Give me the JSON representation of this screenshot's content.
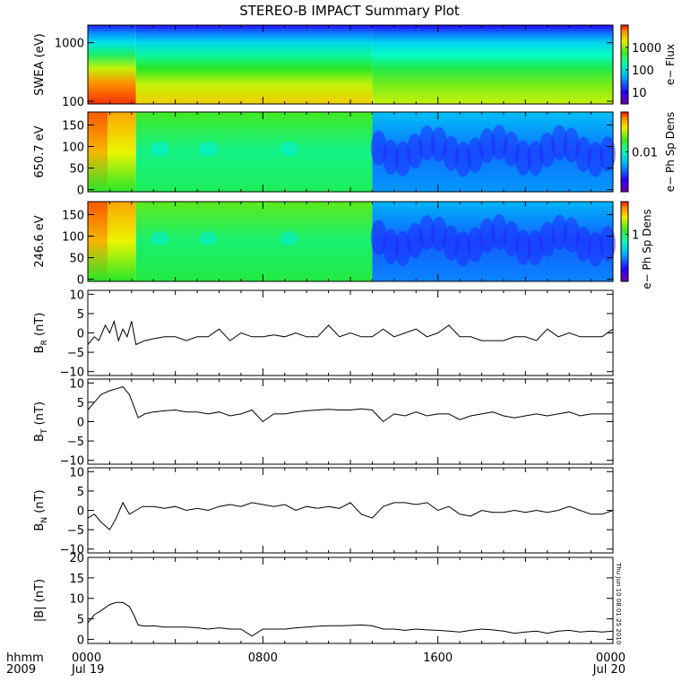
{
  "title": "STEREO-B IMPACT Summary Plot",
  "timestamp": "Thu Jun 10 08:01:25 2010",
  "time_axis": {
    "corner_line1": "hhmm",
    "corner_line2": "2009",
    "ticks": [
      {
        "hour": 0,
        "line1": "0000",
        "line2": "Jul 19"
      },
      {
        "hour": 8,
        "line1": "0800",
        "line2": ""
      },
      {
        "hour": 16,
        "line1": "1600",
        "line2": ""
      },
      {
        "hour": 24,
        "line1": "0000",
        "line2": "Jul 20"
      }
    ],
    "range_hours": [
      0,
      24
    ]
  },
  "chart_data": [
    {
      "type": "heatmap",
      "ylabel": "SWEA (eV)",
      "yscale": "log",
      "ylim": [
        90,
        2000
      ],
      "yticks": [
        {
          "v": 100,
          "label": "100"
        },
        {
          "v": 1000,
          "label": "1000"
        }
      ],
      "colorbar": {
        "label": "e− Flux",
        "scale": "log",
        "range": [
          3,
          10000
        ],
        "ticks": [
          {
            "v": 10,
            "label": "10"
          },
          {
            "v": 100,
            "label": "100"
          },
          {
            "v": 1000,
            "label": "1000"
          }
        ]
      },
      "regions": [
        {
          "x": [
            0,
            2.2
          ],
          "note": "high flux at low energy"
        },
        {
          "x": [
            2.2,
            13
          ],
          "note": "moderate"
        },
        {
          "x": [
            13,
            24
          ],
          "note": "lower flux"
        }
      ]
    },
    {
      "type": "heatmap",
      "ylabel": "650.7 eV",
      "yscale": "linear",
      "ylim": [
        -5,
        180
      ],
      "yticks": [
        {
          "v": 0,
          "label": "0"
        },
        {
          "v": 50,
          "label": "50"
        },
        {
          "v": 100,
          "label": "100"
        },
        {
          "v": 150,
          "label": "150"
        }
      ],
      "colorbar": {
        "label": "e− Ph Sp Dens",
        "scale": "log",
        "range": [
          0.001,
          0.1
        ],
        "ticks": [
          {
            "v": 0.01,
            "label": "0.01"
          }
        ]
      }
    },
    {
      "type": "heatmap",
      "ylabel": "246.6 eV",
      "yscale": "linear",
      "ylim": [
        -5,
        180
      ],
      "yticks": [
        {
          "v": 0,
          "label": "0"
        },
        {
          "v": 50,
          "label": "50"
        },
        {
          "v": 100,
          "label": "100"
        },
        {
          "v": 150,
          "label": "150"
        }
      ],
      "colorbar": {
        "label": "e− Ph Sp Dens",
        "scale": "log",
        "range": [
          0.1,
          5
        ],
        "ticks": [
          {
            "v": 1,
            "label": "1"
          }
        ]
      }
    },
    {
      "type": "line",
      "ylabel_main": "B",
      "ylabel_sub": "R",
      "ylabel_unit": " (nT)",
      "ylim": [
        -11,
        11
      ],
      "yticks": [
        {
          "v": -10,
          "label": "−10"
        },
        {
          "v": -5,
          "label": "−5"
        },
        {
          "v": 0,
          "label": "0"
        },
        {
          "v": 5,
          "label": "5"
        },
        {
          "v": 10,
          "label": "10"
        }
      ],
      "x": [
        0,
        0.3,
        0.5,
        0.8,
        1,
        1.2,
        1.4,
        1.6,
        1.8,
        2,
        2.2,
        2.6,
        3,
        3.5,
        4,
        4.5,
        5,
        5.5,
        6,
        6.5,
        7,
        7.5,
        8,
        8.5,
        9,
        9.5,
        10,
        10.5,
        11,
        11.5,
        12,
        12.5,
        13,
        13.5,
        14,
        14.5,
        15,
        15.5,
        16,
        16.5,
        17,
        17.5,
        18,
        18.5,
        19,
        19.5,
        20,
        20.5,
        21,
        21.5,
        22,
        22.5,
        23,
        23.5,
        24
      ],
      "y": [
        -3,
        -1,
        -2,
        2,
        0,
        3,
        -2,
        1,
        -1,
        3,
        -3,
        -2,
        -1.5,
        -1,
        -1,
        -2,
        -1,
        -1,
        1,
        -2,
        0,
        -1,
        -1,
        -0.5,
        -1,
        0,
        -1,
        -1,
        2,
        -1,
        0,
        -1,
        -1,
        1,
        -1,
        0,
        1,
        -1,
        0,
        2,
        -1,
        -1,
        -2,
        -2,
        -2,
        -1,
        -1,
        -2,
        1,
        -1,
        0,
        -1,
        -1,
        -1,
        1
      ]
    },
    {
      "type": "line",
      "ylabel_main": "B",
      "ylabel_sub": "T",
      "ylabel_unit": " (nT)",
      "ylim": [
        -11,
        11
      ],
      "yticks": [
        {
          "v": -10,
          "label": "−10"
        },
        {
          "v": -5,
          "label": "−5"
        },
        {
          "v": 0,
          "label": "0"
        },
        {
          "v": 5,
          "label": "5"
        },
        {
          "v": 10,
          "label": "10"
        }
      ],
      "x": [
        0,
        0.3,
        0.6,
        1,
        1.3,
        1.6,
        1.9,
        2.1,
        2.3,
        2.6,
        3,
        3.5,
        4,
        4.5,
        5,
        5.5,
        6,
        6.5,
        7,
        7.5,
        8,
        8.5,
        9,
        9.5,
        10,
        10.5,
        11,
        11.5,
        12,
        12.5,
        13,
        13.5,
        14,
        14.5,
        15,
        15.5,
        16,
        16.5,
        17,
        17.5,
        18,
        18.5,
        19,
        19.5,
        20,
        20.5,
        21,
        21.5,
        22,
        22.5,
        23,
        23.5,
        24
      ],
      "y": [
        3,
        5,
        7,
        8,
        8.5,
        9,
        7,
        4,
        1,
        2,
        2.5,
        2.8,
        3,
        2.5,
        2.5,
        2,
        2.5,
        1.5,
        2,
        3,
        0,
        2,
        2,
        2.5,
        2.8,
        3,
        3.2,
        3,
        3,
        3.3,
        3,
        0,
        2,
        1.5,
        2.5,
        1.5,
        2,
        2,
        0.5,
        1.5,
        2,
        2.5,
        1.5,
        1,
        1.5,
        2,
        1.5,
        2,
        2.5,
        1.5,
        2,
        2,
        2
      ]
    },
    {
      "type": "line",
      "ylabel_main": "B",
      "ylabel_sub": "N",
      "ylabel_unit": " (nT)",
      "ylim": [
        -11,
        11
      ],
      "yticks": [
        {
          "v": -10,
          "label": "−10"
        },
        {
          "v": -5,
          "label": "−5"
        },
        {
          "v": 0,
          "label": "0"
        },
        {
          "v": 5,
          "label": "5"
        },
        {
          "v": 10,
          "label": "10"
        }
      ],
      "x": [
        0,
        0.3,
        0.6,
        1,
        1.3,
        1.6,
        1.9,
        2.2,
        2.5,
        3,
        3.5,
        4,
        4.5,
        5,
        5.5,
        6,
        6.5,
        7,
        7.5,
        8,
        8.5,
        9,
        9.5,
        10,
        10.5,
        11,
        11.5,
        12,
        12.5,
        13,
        13.5,
        14,
        14.5,
        15,
        15.5,
        16,
        16.5,
        17,
        17.5,
        18,
        18.5,
        19,
        19.5,
        20,
        20.5,
        21,
        21.5,
        22,
        22.5,
        23,
        23.5,
        24
      ],
      "y": [
        -2,
        -1,
        -3,
        -5,
        -2,
        2,
        -1,
        0,
        1,
        1,
        0.5,
        1,
        0,
        0.5,
        0,
        1,
        1.5,
        1,
        2,
        1.5,
        1,
        1.5,
        0,
        1,
        0.5,
        1,
        0.5,
        2,
        -1,
        -2,
        1,
        2,
        2,
        1.5,
        2,
        0,
        1,
        -1,
        -1.5,
        0,
        -0.5,
        -0.5,
        0,
        -0.5,
        0,
        -0.5,
        0,
        1,
        0,
        -1,
        -1,
        0
      ]
    },
    {
      "type": "line",
      "ylabel_main": "|B|",
      "ylabel_sub": "",
      "ylabel_unit": " (nT)",
      "ylim": [
        -1,
        20
      ],
      "yticks": [
        {
          "v": 0,
          "label": "0"
        },
        {
          "v": 5,
          "label": "5"
        },
        {
          "v": 10,
          "label": "10"
        },
        {
          "v": 15,
          "label": "15"
        },
        {
          "v": 20,
          "label": "20"
        }
      ],
      "x": [
        0,
        0.3,
        0.6,
        1,
        1.3,
        1.6,
        1.9,
        2.1,
        2.3,
        2.6,
        3,
        3.5,
        4,
        4.5,
        5,
        5.5,
        6,
        6.5,
        7,
        7.5,
        8,
        8.5,
        9,
        9.5,
        10,
        10.5,
        11,
        11.5,
        12,
        12.5,
        13,
        13.5,
        14,
        14.5,
        15,
        15.5,
        16,
        16.5,
        17,
        17.5,
        18,
        18.5,
        19,
        19.5,
        20,
        20.5,
        21,
        21.5,
        22,
        22.5,
        23,
        23.5,
        24
      ],
      "y": [
        4,
        6,
        7,
        8.5,
        9,
        9,
        8,
        6,
        3.5,
        3.2,
        3.3,
        3,
        3,
        3,
        2.8,
        2.5,
        2.8,
        2.5,
        2.5,
        0.8,
        2.5,
        2.5,
        2.5,
        2.8,
        3,
        3.2,
        3.3,
        3.3,
        3.4,
        3.5,
        3.3,
        2.5,
        2.5,
        2.2,
        2.5,
        2.3,
        2.2,
        2,
        1.8,
        2.2,
        2.5,
        2.3,
        2,
        1.5,
        1.8,
        2,
        1.5,
        2,
        2.2,
        1.8,
        2,
        1.8,
        2
      ]
    }
  ]
}
